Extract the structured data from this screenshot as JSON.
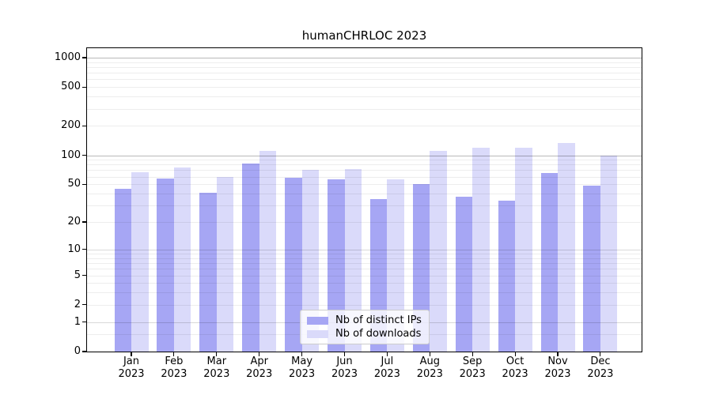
{
  "chart_data": {
    "type": "bar",
    "title": "humanCHRLOC 2023",
    "categories": [
      "Jan",
      "Feb",
      "Mar",
      "Apr",
      "May",
      "Jun",
      "Jul",
      "Aug",
      "Sep",
      "Oct",
      "Nov",
      "Dec"
    ],
    "category_year": "2023",
    "series": [
      {
        "name": "Nb of distinct IPs",
        "color": "#a6a6f4",
        "values": [
          45,
          57,
          41,
          82,
          58,
          56,
          35,
          50,
          37,
          34,
          65,
          48
        ]
      },
      {
        "name": "Nb of downloads",
        "color": "#dadafa",
        "values": [
          67,
          75,
          60,
          111,
          70,
          72,
          56,
          110,
          120,
          120,
          134,
          100
        ]
      }
    ],
    "yscale": "log1p",
    "yticks": [
      0,
      1,
      2,
      5,
      10,
      20,
      50,
      100,
      200,
      500,
      1000
    ],
    "ylim": [
      0,
      1250
    ],
    "grid": true,
    "gridlines": {
      "minor": [
        0.5,
        2,
        3,
        4,
        5,
        6,
        7,
        8,
        9,
        20,
        30,
        40,
        50,
        60,
        70,
        80,
        90,
        200,
        300,
        400,
        500,
        600,
        700,
        800,
        900
      ],
      "mid": [
        1,
        10
      ],
      "major": [
        100,
        1000
      ]
    },
    "legend_position": "lower center",
    "xlabel": "",
    "ylabel": ""
  }
}
